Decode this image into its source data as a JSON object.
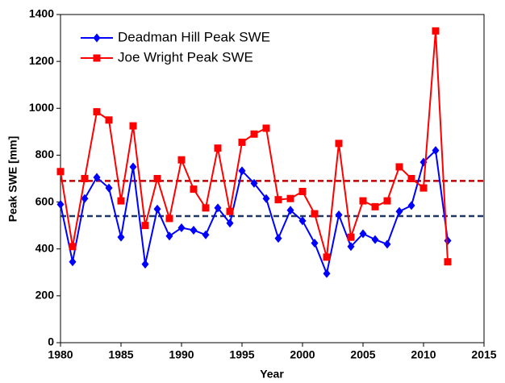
{
  "chart_data": {
    "type": "line",
    "xlabel": "Year",
    "ylabel": "Peak SWE [mm]",
    "x": [
      1980,
      1981,
      1982,
      1983,
      1984,
      1985,
      1986,
      1987,
      1988,
      1989,
      1990,
      1991,
      1992,
      1993,
      1994,
      1995,
      1996,
      1997,
      1998,
      1999,
      2000,
      2001,
      2002,
      2003,
      2004,
      2005,
      2006,
      2007,
      2008,
      2009,
      2010,
      2011,
      2012
    ],
    "series": [
      {
        "name": "Deadman Hill Peak SWE",
        "color": "#0000ff",
        "marker": "diamond",
        "values": [
          590,
          345,
          615,
          705,
          660,
          450,
          750,
          335,
          570,
          455,
          490,
          480,
          460,
          575,
          510,
          733,
          680,
          615,
          445,
          565,
          520,
          425,
          295,
          545,
          410,
          465,
          440,
          420,
          560,
          585,
          770,
          820,
          435
        ]
      },
      {
        "name": "Joe Wright Peak SWE",
        "color": "#ff0000",
        "marker": "square",
        "values": [
          730,
          410,
          700,
          985,
          950,
          605,
          925,
          500,
          700,
          530,
          780,
          655,
          575,
          830,
          560,
          855,
          890,
          915,
          610,
          615,
          645,
          550,
          365,
          850,
          450,
          605,
          580,
          605,
          750,
          700,
          660,
          1330,
          345
        ]
      }
    ],
    "reference_lines": [
      {
        "value": 540,
        "color": "#1f3864"
      },
      {
        "value": 690,
        "color": "#c00000"
      }
    ],
    "xlim": [
      1980,
      2015
    ],
    "xticks": [
      1980,
      1985,
      1990,
      1995,
      2000,
      2005,
      2010,
      2015
    ],
    "ylim": [
      0,
      1400
    ],
    "yticks": [
      0,
      200,
      400,
      600,
      800,
      1000,
      1200,
      1400
    ],
    "legend": "upper left"
  }
}
